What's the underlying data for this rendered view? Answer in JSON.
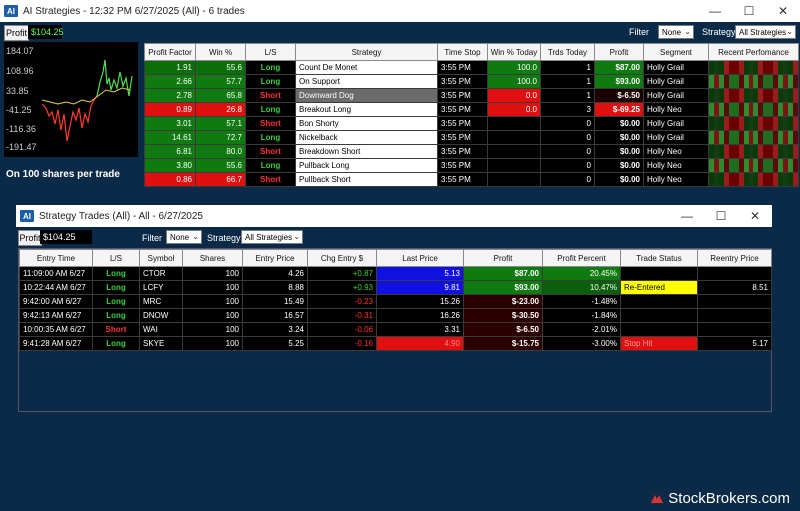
{
  "top_window": {
    "title": "AI Strategies - 12:32 PM 6/27/2025 (All) - 6 trades",
    "logo": "AI",
    "profit_button": "Profit",
    "profit_value": "$104.25",
    "filter_label": "Filter",
    "filter_value": "None",
    "strategy_label": "Strategy",
    "strategy_value": "All Strategies",
    "chart_caption": "On 100 shares per trade",
    "chart_yticks": [
      "184.07",
      "108.96",
      "33.85",
      "-41.25",
      "-116.36",
      "-191.47"
    ],
    "columns": [
      "Profit Factor",
      "Win %",
      "L/S",
      "Strategy",
      "Time Stop",
      "Win % Today",
      "Trds Today",
      "Profit",
      "Segment",
      "Recent Perfomance"
    ],
    "rows": [
      {
        "pf": "1.91",
        "win": "55.6",
        "ls": "Long",
        "strategy": "Count De Monet",
        "time": "3:55 PM",
        "wint": "100.0",
        "trds": "1",
        "profit": "$87.00",
        "segment": "Holly Grail"
      },
      {
        "pf": "2.66",
        "win": "57.7",
        "ls": "Long",
        "strategy": "On Support",
        "time": "3:55 PM",
        "wint": "100.0",
        "trds": "1",
        "profit": "$93.00",
        "segment": "Holly Grail"
      },
      {
        "pf": "2.78",
        "win": "65.8",
        "ls": "Short",
        "strategy": "Downward Dog",
        "time": "3:55 PM",
        "wint": "0.0",
        "trds": "1",
        "profit": "$-6.50",
        "segment": "Holly Grail"
      },
      {
        "pf": "0.89",
        "win": "26.8",
        "ls": "Long",
        "strategy": "Breakout Long",
        "time": "3:55 PM",
        "wint": "0.0",
        "trds": "3",
        "profit": "$-69.25",
        "segment": "Holly Neo"
      },
      {
        "pf": "3.01",
        "win": "57.1",
        "ls": "Short",
        "strategy": "Bon Shorty",
        "time": "3:55 PM",
        "wint": "",
        "trds": "0",
        "profit": "$0.00",
        "segment": "Holly Grail"
      },
      {
        "pf": "14.61",
        "win": "72.7",
        "ls": "Long",
        "strategy": "Nickelback",
        "time": "3:55 PM",
        "wint": "",
        "trds": "0",
        "profit": "$0.00",
        "segment": "Holly Grail"
      },
      {
        "pf": "6.81",
        "win": "80.0",
        "ls": "Short",
        "strategy": "Breakdown Short",
        "time": "3:55 PM",
        "wint": "",
        "trds": "0",
        "profit": "$0.00",
        "segment": "Holly Neo"
      },
      {
        "pf": "3.80",
        "win": "55.6",
        "ls": "Long",
        "strategy": "Pullback Long",
        "time": "3:55 PM",
        "wint": "",
        "trds": "0",
        "profit": "$0.00",
        "segment": "Holly Neo"
      },
      {
        "pf": "0.86",
        "win": "66.7",
        "ls": "Short",
        "strategy": "Pullback Short",
        "time": "3:55 PM",
        "wint": "",
        "trds": "0",
        "profit": "$0.00",
        "segment": "Holly Neo"
      }
    ]
  },
  "trades_window": {
    "title": "Strategy Trades (All) - All - 6/27/2025",
    "logo": "AI",
    "profit_button": "Profit",
    "profit_value": "$104.25",
    "filter_label": "Filter",
    "filter_value": "None",
    "strategy_label": "Strategy",
    "strategy_value": "All Strategies",
    "columns": [
      "Entry Time",
      "L/S",
      "Symbol",
      "Shares",
      "Entry Price",
      "Chg Entry $",
      "Last Price",
      "Profit",
      "Profit Percent",
      "Trade Status",
      "Reentry Price"
    ],
    "rows": [
      {
        "time": "11:09:00 AM 6/27",
        "ls": "Long",
        "symbol": "CTOR",
        "shares": "100",
        "entry": "4.26",
        "chg": "+0.87",
        "last": "5.13",
        "profit": "$87.00",
        "pct": "20.45%",
        "status": "",
        "reentry": ""
      },
      {
        "time": "10:22:44 AM 6/27",
        "ls": "Long",
        "symbol": "LCFY",
        "shares": "100",
        "entry": "8.88",
        "chg": "+0.93",
        "last": "9.81",
        "profit": "$93.00",
        "pct": "10.47%",
        "status": "Re-Entered",
        "reentry": "8.51"
      },
      {
        "time": "9:42:00 AM 6/27",
        "ls": "Long",
        "symbol": "MRC",
        "shares": "100",
        "entry": "15.49",
        "chg": "-0.23",
        "last": "15.26",
        "profit": "$-23.00",
        "pct": "-1.48%",
        "status": "",
        "reentry": ""
      },
      {
        "time": "9:42:13 AM 6/27",
        "ls": "Long",
        "symbol": "DNOW",
        "shares": "100",
        "entry": "16.57",
        "chg": "-0.31",
        "last": "16.26",
        "profit": "$-30.50",
        "pct": "-1.84%",
        "status": "",
        "reentry": ""
      },
      {
        "time": "10:00:35 AM 6/27",
        "ls": "Short",
        "symbol": "WAI",
        "shares": "100",
        "entry": "3.24",
        "chg": "-0.06",
        "last": "3.31",
        "profit": "$-6.50",
        "pct": "-2.01%",
        "status": "",
        "reentry": ""
      },
      {
        "time": "9:41:28 AM 6/27",
        "ls": "Long",
        "symbol": "SKYE",
        "shares": "100",
        "entry": "5.25",
        "chg": "-0.16",
        "last": "4.90",
        "profit": "$-15.75",
        "pct": "-3.00%",
        "status": "Stop Hit",
        "reentry": "5.17"
      }
    ]
  },
  "watermark": "StockBrokers.com",
  "colors": {
    "background": "#0b2a47",
    "green_cell": "#0f7a0f",
    "red_cell": "#d01010",
    "long": "#38d038",
    "short": "#ff3030"
  }
}
